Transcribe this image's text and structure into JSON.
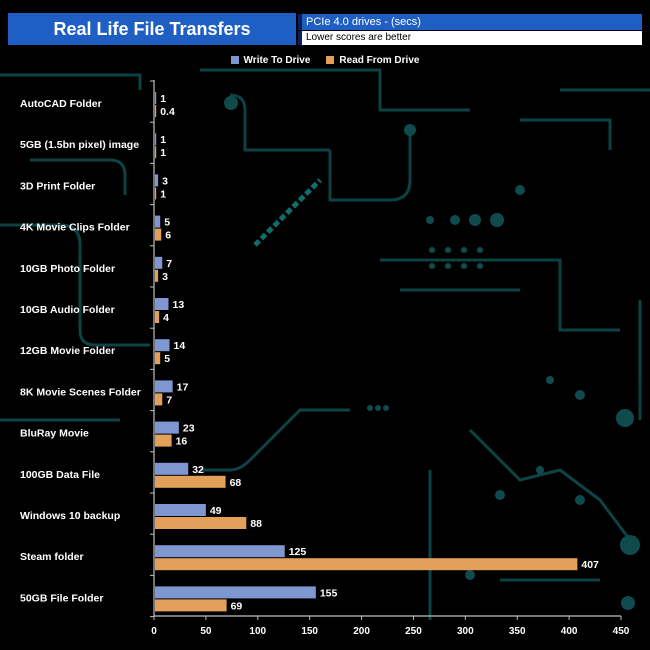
{
  "header": {
    "title": "Real Life File Transfers",
    "subtitle": "PCIe 4.0 drives - (secs)",
    "note": "Lower scores are better"
  },
  "colors": {
    "write": "#7f97d0",
    "read": "#e3a05a",
    "header_blue": "#1f5fc4",
    "circuit": "#0f4a4d"
  },
  "chart_data": {
    "type": "bar",
    "orientation": "horizontal",
    "categories": [
      "AutoCAD Folder",
      "5GB (1.5bn pixel) image",
      "3D Print Folder",
      "4K Movie Clips Folder",
      "10GB Photo Folder",
      "10GB Audio Folder",
      "12GB Movie Folder",
      "8K Movie Scenes Folder",
      "BluRay Movie",
      "100GB Data File",
      "Windows 10 backup",
      "Steam folder",
      "50GB File Folder"
    ],
    "series": [
      {
        "name": "Write To  Drive",
        "color": "#7f97d0",
        "values": [
          1,
          1,
          3,
          5,
          7,
          13,
          14,
          17,
          23,
          32,
          49,
          125,
          155
        ]
      },
      {
        "name": "Read From  Drive",
        "color": "#e3a05a",
        "values": [
          0.4,
          1,
          1,
          6,
          3,
          4,
          5,
          7,
          16,
          68,
          88,
          407,
          69
        ]
      }
    ],
    "xlim": [
      0,
      450
    ],
    "xticks": [
      0,
      50,
      100,
      150,
      200,
      250,
      300,
      350,
      400,
      450
    ],
    "legend": "top-center",
    "grid": false
  }
}
